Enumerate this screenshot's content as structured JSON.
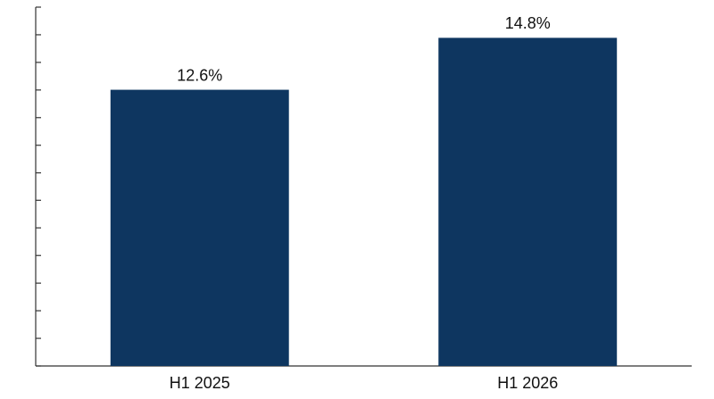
{
  "chart_data": {
    "type": "bar",
    "categories": [
      "H1 2025",
      "H1 2026"
    ],
    "values": [
      12.6,
      14.8
    ],
    "value_labels": [
      "12.6%",
      "14.8%"
    ],
    "color": "#0e3660",
    "ylim": [
      0.9,
      16.1
    ],
    "yticks": [
      0.9,
      2.07,
      3.24,
      4.41,
      5.58,
      6.75,
      7.92,
      9.08,
      10.25,
      11.42,
      12.59,
      13.76,
      14.93,
      16.1
    ]
  }
}
